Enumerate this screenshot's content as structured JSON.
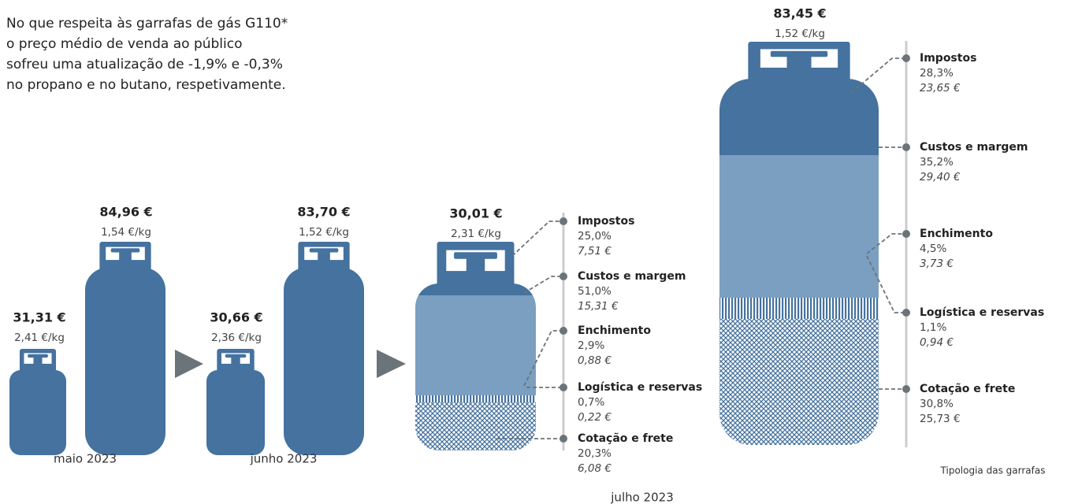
{
  "intro": [
    "No que respeita às garrafas de gás G110*",
    "o preço médio de venda ao público",
    "sofreu uma atualização de -1,9% e -0,3%",
    "no propano e no butano, respetivamente."
  ],
  "periods": [
    {
      "label": "maio 2023",
      "bottles": [
        {
          "price": "31,31 €",
          "per_kg": "2,41 €/kg"
        },
        {
          "price": "84,96 €",
          "per_kg": "1,54 €/kg"
        }
      ]
    },
    {
      "label": "junho 2023",
      "bottles": [
        {
          "price": "30,66 €",
          "per_kg": "2,36 €/kg"
        },
        {
          "price": "83,70 €",
          "per_kg": "1,52 €/kg"
        }
      ]
    },
    {
      "label": "julho 2023",
      "bottles": [
        {
          "price": "30,01 €",
          "per_kg": "2,31 €/kg",
          "components": [
            {
              "name": "Impostos",
              "share": "25,0%",
              "amount": "7,51 €"
            },
            {
              "name": "Custos e margem",
              "share": "51,0%",
              "amount": "15,31 €"
            },
            {
              "name": "Enchimento",
              "share": "2,9%",
              "amount": "0,88 €"
            },
            {
              "name": "Logística e reservas",
              "share": "0,7%",
              "amount": "0,22 €"
            },
            {
              "name": "Cotação e frete",
              "share": "20,3%",
              "amount": "6,08 €"
            }
          ]
        },
        {
          "price": "83,45 €",
          "per_kg": "1,52 €/kg",
          "components": [
            {
              "name": "Impostos",
              "share": "28,3%",
              "amount": "23,65 €"
            },
            {
              "name": "Custos e margem",
              "share": "35,2%",
              "amount": "29,40 €"
            },
            {
              "name": "Enchimento",
              "share": "4,5%",
              "amount": "3,73 €"
            },
            {
              "name": "Logística e reservas",
              "share": "1,1%",
              "amount": "0,94 €"
            },
            {
              "name": "Cotação e frete",
              "share": "30,8%",
              "amount": "25,73 €"
            }
          ]
        }
      ]
    }
  ],
  "note": "Tipologia das garrafas"
}
